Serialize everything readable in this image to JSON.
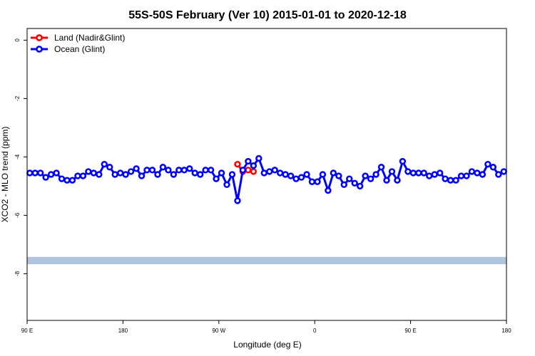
{
  "chart_data": {
    "type": "line",
    "title": "55S-50S February (Ver 10)   2015-01-01 to 2020-12-18",
    "xlabel": "Longitude (deg E)",
    "ylabel": "XCO2 - MLO trend (ppm)",
    "xlim": [
      90,
      540
    ],
    "ylim": [
      -9.6,
      0.4
    ],
    "x_ticks": [
      {
        "value": 90,
        "label": "90 E"
      },
      {
        "value": 180,
        "label": "180"
      },
      {
        "value": 270,
        "label": "90 W"
      },
      {
        "value": 360,
        "label": "0"
      },
      {
        "value": 450,
        "label": "90 E"
      },
      {
        "value": 540,
        "label": "180"
      }
    ],
    "y_ticks": [
      0,
      -2,
      -4,
      -6,
      -8
    ],
    "legend_position": "top-left",
    "land_band": {
      "y_center": -7.55,
      "height": 0.25,
      "color": "#b0c4de"
    },
    "series": [
      {
        "name": "Land (Nadir&Glint)",
        "color": "#ff0000",
        "x": [
          287.5,
          292.5,
          297.5,
          302.5
        ],
        "y": [
          -4.25,
          -4.5,
          -4.45,
          -4.5
        ]
      },
      {
        "name": "Ocean (Glint)",
        "color": "#0000ff",
        "x": [
          92.5,
          97.5,
          102.5,
          107.5,
          112.5,
          117.5,
          122.5,
          127.5,
          132.5,
          137.5,
          142.5,
          147.5,
          152.5,
          157.5,
          162.5,
          167.5,
          172.5,
          177.5,
          182.5,
          187.5,
          192.5,
          197.5,
          202.5,
          207.5,
          212.5,
          217.5,
          222.5,
          227.5,
          232.5,
          237.5,
          242.5,
          247.5,
          252.5,
          257.5,
          262.5,
          267.5,
          272.5,
          277.5,
          282.5,
          287.5,
          292.5,
          297.5,
          302.5,
          307.5,
          312.5,
          317.5,
          322.5,
          327.5,
          332.5,
          337.5,
          342.5,
          347.5,
          352.5,
          357.5,
          362.5,
          367.5,
          372.5,
          377.5,
          382.5,
          387.5,
          392.5,
          397.5,
          402.5,
          407.5,
          412.5,
          417.5,
          422.5,
          427.5,
          432.5,
          437.5,
          442.5,
          447.5,
          452.5,
          457.5,
          462.5,
          467.5,
          472.5,
          477.5,
          482.5,
          487.5,
          492.5,
          497.5,
          502.5,
          507.5,
          512.5,
          517.5,
          522.5,
          527.5,
          532.5,
          537.5
        ],
        "y": [
          -4.55,
          -4.55,
          -4.55,
          -4.7,
          -4.6,
          -4.55,
          -4.75,
          -4.8,
          -4.8,
          -4.65,
          -4.65,
          -4.5,
          -4.55,
          -4.6,
          -4.25,
          -4.35,
          -4.6,
          -4.55,
          -4.6,
          -4.5,
          -4.4,
          -4.65,
          -4.45,
          -4.45,
          -4.6,
          -4.35,
          -4.45,
          -4.6,
          -4.45,
          -4.45,
          -4.4,
          -4.55,
          -4.6,
          -4.45,
          -4.45,
          -4.75,
          -4.55,
          -4.95,
          -4.6,
          -5.5,
          -4.45,
          -4.15,
          -4.3,
          -4.05,
          -4.55,
          -4.5,
          -4.45,
          -4.55,
          -4.6,
          -4.65,
          -4.75,
          -4.7,
          -4.6,
          -4.85,
          -4.85,
          -4.6,
          -5.15,
          -4.55,
          -4.65,
          -4.95,
          -4.75,
          -4.9,
          -5.0,
          -4.65,
          -4.75,
          -4.6,
          -4.35,
          -4.8,
          -4.5,
          -4.8,
          -4.15,
          -4.5,
          -4.55,
          -4.55,
          -4.55,
          -4.65,
          -4.6,
          -4.55,
          -4.75,
          -4.8,
          -4.8,
          -4.65,
          -4.65,
          -4.5,
          -4.55,
          -4.6,
          -4.25,
          -4.35,
          -4.6,
          -4.5
        ]
      }
    ]
  }
}
